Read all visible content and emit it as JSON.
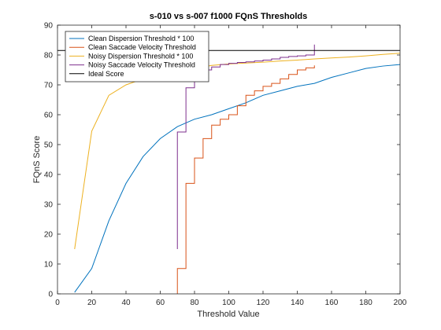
{
  "chart_data": {
    "type": "line",
    "title": "s-010 vs s-007 f1000 FQnS Thresholds",
    "xlabel": "Threshold Value",
    "ylabel": "FQnS Score",
    "xlim": [
      0,
      200
    ],
    "ylim": [
      0,
      90
    ],
    "xticks": [
      0,
      20,
      40,
      60,
      80,
      100,
      120,
      140,
      160,
      180,
      200
    ],
    "yticks": [
      0,
      10,
      20,
      30,
      40,
      50,
      60,
      70,
      80,
      90
    ],
    "grid": false,
    "legend_position": "top-left",
    "series": [
      {
        "name": "Clean Dispersion Threshold * 100",
        "color": "#0072BD",
        "step": false,
        "x": [
          10,
          20,
          30,
          40,
          50,
          60,
          70,
          80,
          90,
          100,
          110,
          120,
          130,
          140,
          150,
          160,
          170,
          180,
          190,
          200
        ],
        "y": [
          0.5,
          8.5,
          24.5,
          37,
          46,
          52,
          56,
          58.5,
          60,
          62,
          64,
          66.5,
          68,
          69.5,
          70.5,
          72.5,
          74,
          75.5,
          76.3,
          76.8
        ]
      },
      {
        "name": "Clean Saccade Velocity Threshold",
        "color": "#D95319",
        "step": true,
        "x": [
          70,
          70,
          75,
          80,
          85,
          90,
          95,
          100,
          105,
          110,
          115,
          120,
          125,
          130,
          135,
          140,
          145,
          150
        ],
        "y": [
          0,
          8.5,
          37,
          45.5,
          52,
          56.5,
          58.5,
          60,
          63,
          66.5,
          68,
          69.5,
          70.5,
          72,
          73.5,
          75,
          75.7,
          76.5
        ]
      },
      {
        "name": "Noisy Dispersion Threshold * 100",
        "color": "#EDB120",
        "step": false,
        "x": [
          10,
          20,
          30,
          40,
          50,
          60,
          70,
          80,
          90,
          100,
          110,
          120,
          130,
          140,
          150,
          160,
          170,
          180,
          190,
          200
        ],
        "y": [
          15,
          54.5,
          66.5,
          70,
          72,
          73.5,
          74.5,
          75.5,
          76.5,
          77,
          77.3,
          77.6,
          78,
          78.3,
          78.7,
          79,
          79.3,
          79.7,
          80.2,
          80.6
        ]
      },
      {
        "name": "Noisy Saccade Velocity Threshold",
        "color": "#7E2F8E",
        "step": true,
        "x": [
          70,
          70,
          75,
          80,
          85,
          90,
          95,
          100,
          105,
          110,
          115,
          120,
          125,
          130,
          135,
          140,
          145,
          150,
          150
        ],
        "y": [
          15,
          54.2,
          69,
          73.5,
          75,
          76,
          76.8,
          77.2,
          77.5,
          77.7,
          78,
          78.3,
          78.7,
          79.2,
          79.5,
          79.7,
          80,
          80.5,
          83.5
        ]
      },
      {
        "name": "Ideal Score",
        "color": "#000000",
        "step": false,
        "x": [
          0,
          200
        ],
        "y": [
          81.5,
          81.5
        ]
      }
    ]
  }
}
